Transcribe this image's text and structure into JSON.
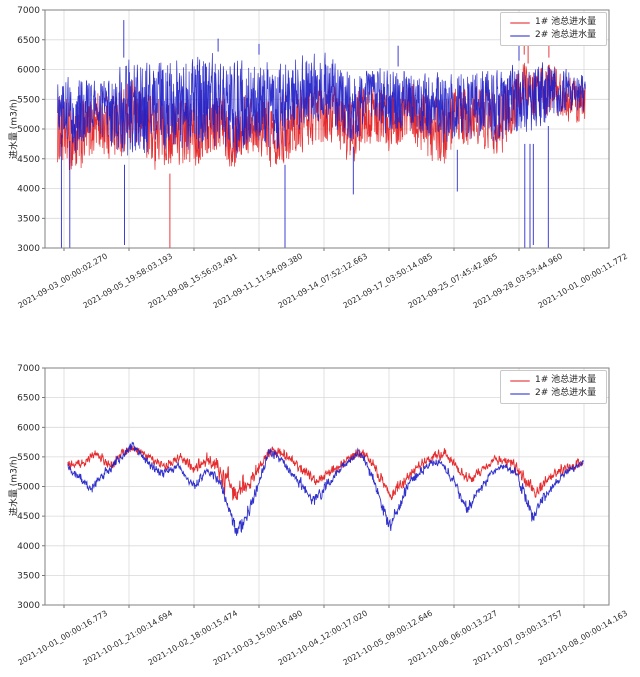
{
  "chart_data": [
    {
      "type": "line",
      "title": "",
      "ylabel": "进水量 (m3/h)",
      "xlabel": "",
      "ylim": [
        3000,
        7000
      ],
      "yticks": [
        3000,
        3500,
        4000,
        4500,
        5000,
        5500,
        6000,
        6500,
        7000
      ],
      "grid": true,
      "legend_position": "upper right",
      "xticklabels": [
        "2021-09-03_00:00:02.270",
        "2021-09-05_19:58:03.193",
        "2021-09-08_15:56:03.491",
        "2021-09-11_11:54:09.380",
        "2021-09-14_07:52:12.663",
        "2021-09-17_03:50:14.085",
        "2021-09-25_07:45:42.865",
        "2021-09-28_03:53:44.960",
        "2021-10-01_00:00:11.772"
      ],
      "series": [
        {
          "name": "1# 池总进水量",
          "color": "#e31a1c",
          "style": "dense-band",
          "band_keypoints": [
            [
              -0.1,
              4350,
              5600
            ],
            [
              0.2,
              4100,
              5500
            ],
            [
              0.5,
              4550,
              5700
            ],
            [
              0.8,
              4400,
              5750
            ],
            [
              1.1,
              4650,
              5850
            ],
            [
              1.4,
              4250,
              5650
            ],
            [
              1.7,
              4350,
              5600
            ],
            [
              2.0,
              4250,
              5650
            ],
            [
              2.3,
              4500,
              5800
            ],
            [
              2.6,
              4300,
              5550
            ],
            [
              2.9,
              4600,
              5700
            ],
            [
              3.2,
              4300,
              5600
            ],
            [
              3.5,
              4450,
              5700
            ],
            [
              3.8,
              4650,
              5800
            ],
            [
              4.1,
              4700,
              5850
            ],
            [
              4.4,
              4300,
              5650
            ],
            [
              4.7,
              4700,
              5800
            ],
            [
              5.0,
              4550,
              5750
            ],
            [
              5.3,
              4800,
              5850
            ],
            [
              5.6,
              4350,
              5650
            ],
            [
              5.85,
              4300,
              5600
            ],
            [
              6.1,
              4500,
              5800
            ],
            [
              6.4,
              4650,
              5850
            ],
            [
              6.7,
              4450,
              5700
            ],
            [
              6.95,
              4950,
              6050
            ],
            [
              7.1,
              5250,
              6300
            ],
            [
              7.3,
              4950,
              6000
            ],
            [
              7.5,
              5150,
              6250
            ],
            [
              7.7,
              5100,
              5950
            ],
            [
              8.02,
              5050,
              5800
            ]
          ]
        },
        {
          "name": "2# 池总进水量",
          "color": "#2020c8",
          "style": "dense-band",
          "band_keypoints": [
            [
              -0.1,
              4900,
              5950
            ],
            [
              0.2,
              4500,
              5900
            ],
            [
              0.5,
              4850,
              5900
            ],
            [
              0.8,
              4500,
              6050
            ],
            [
              1.0,
              4400,
              6250
            ],
            [
              1.3,
              4400,
              6200
            ],
            [
              1.6,
              4600,
              6250
            ],
            [
              1.95,
              4450,
              6300
            ],
            [
              2.35,
              4650,
              6350
            ],
            [
              2.7,
              4450,
              6200
            ],
            [
              3.0,
              4650,
              6250
            ],
            [
              3.3,
              4400,
              6150
            ],
            [
              3.6,
              4950,
              6300
            ],
            [
              4.0,
              5050,
              6350
            ],
            [
              4.45,
              4700,
              6000
            ],
            [
              4.7,
              5100,
              6050
            ],
            [
              5.0,
              4850,
              6100
            ],
            [
              5.3,
              5000,
              6000
            ],
            [
              5.6,
              4750,
              5950
            ],
            [
              6.0,
              4650,
              6050
            ],
            [
              6.3,
              4800,
              6100
            ],
            [
              6.6,
              4700,
              6000
            ],
            [
              7.0,
              4800,
              6150
            ],
            [
              7.2,
              4750,
              6050
            ],
            [
              7.45,
              5050,
              6300
            ],
            [
              7.7,
              5250,
              6050
            ],
            [
              8.02,
              5150,
              5950
            ]
          ]
        }
      ],
      "down_spikes": [
        {
          "x": -0.04,
          "from": 4900,
          "to": 3000,
          "series": 1
        },
        {
          "x": 0.09,
          "from": 4800,
          "to": 3000,
          "series": 1
        },
        {
          "x": 0.93,
          "from": 4400,
          "to": 3050,
          "series": 1
        },
        {
          "x": 1.63,
          "from": 4250,
          "to": 3000,
          "series": 0
        },
        {
          "x": 3.4,
          "from": 4400,
          "to": 3000,
          "series": 1
        },
        {
          "x": 4.45,
          "from": 4700,
          "to": 3900,
          "series": 1
        },
        {
          "x": 6.05,
          "from": 4650,
          "to": 3950,
          "series": 1
        },
        {
          "x": 7.09,
          "from": 4750,
          "to": 3000,
          "series": 1
        },
        {
          "x": 7.17,
          "from": 4750,
          "to": 3000,
          "series": 1
        },
        {
          "x": 7.22,
          "from": 4750,
          "to": 3050,
          "series": 1
        },
        {
          "x": 7.45,
          "from": 5050,
          "to": 3000,
          "series": 1
        }
      ],
      "up_spikes": [
        {
          "x": 0.92,
          "from": 6200,
          "to": 6830,
          "series": 1
        },
        {
          "x": 2.37,
          "from": 6300,
          "to": 6520,
          "series": 1
        },
        {
          "x": 3.0,
          "from": 6250,
          "to": 6430,
          "series": 1
        },
        {
          "x": 5.14,
          "from": 6050,
          "to": 6400,
          "series": 1
        },
        {
          "x": 7.0,
          "from": 6150,
          "to": 6400,
          "series": 1
        },
        {
          "x": 7.08,
          "from": 6250,
          "to": 6560,
          "series": 0
        },
        {
          "x": 7.14,
          "from": 6100,
          "to": 6480,
          "series": 0
        },
        {
          "x": 7.46,
          "from": 6200,
          "to": 6420,
          "series": 0
        }
      ]
    },
    {
      "type": "line",
      "title": "",
      "ylabel": "进水量 (m3/h)",
      "xlabel": "",
      "ylim": [
        3000,
        7000
      ],
      "yticks": [
        3000,
        3500,
        4000,
        4500,
        5000,
        5500,
        6000,
        6500,
        7000
      ],
      "grid": true,
      "legend_position": "upper right",
      "xticklabels": [
        "2021-10-01_00:00:16.773",
        "2021-10-01_21:00:14.694",
        "2021-10-02_18:00:15.474",
        "2021-10-03_15:00:16.490",
        "2021-10-04_12:00:17.020",
        "2021-10-05_09:00:12.646",
        "2021-10-06_06:00:13.227",
        "2021-10-07_03:00:13.757",
        "2021-10-08_00:00:14.163"
      ],
      "series": [
        {
          "name": "1# 池总进水量",
          "color": "#e31a1c",
          "style": "noisy-line",
          "center_keypoints": [
            [
              0.06,
              5350,
              110
            ],
            [
              0.3,
              5400,
              110
            ],
            [
              0.5,
              5550,
              120
            ],
            [
              0.7,
              5350,
              110
            ],
            [
              0.9,
              5550,
              110
            ],
            [
              1.05,
              5650,
              110
            ],
            [
              1.3,
              5500,
              110
            ],
            [
              1.55,
              5350,
              110
            ],
            [
              1.8,
              5500,
              110
            ],
            [
              2.0,
              5300,
              120
            ],
            [
              2.2,
              5450,
              150
            ],
            [
              2.45,
              5150,
              300
            ],
            [
              2.66,
              4950,
              280
            ],
            [
              2.85,
              5050,
              200
            ],
            [
              3.05,
              5400,
              150
            ],
            [
              3.2,
              5650,
              120
            ],
            [
              3.45,
              5500,
              110
            ],
            [
              3.7,
              5250,
              110
            ],
            [
              3.9,
              5100,
              120
            ],
            [
              4.1,
              5250,
              110
            ],
            [
              4.35,
              5450,
              110
            ],
            [
              4.6,
              5600,
              110
            ],
            [
              4.8,
              5300,
              130
            ],
            [
              5.0,
              4900,
              170
            ],
            [
              5.2,
              5050,
              140
            ],
            [
              5.4,
              5300,
              110
            ],
            [
              5.6,
              5450,
              110
            ],
            [
              5.85,
              5550,
              120
            ],
            [
              6.05,
              5300,
              110
            ],
            [
              6.25,
              5100,
              120
            ],
            [
              6.45,
              5300,
              110
            ],
            [
              6.65,
              5450,
              120
            ],
            [
              6.9,
              5400,
              120
            ],
            [
              7.1,
              5100,
              140
            ],
            [
              7.25,
              4900,
              150
            ],
            [
              7.45,
              5150,
              120
            ],
            [
              7.65,
              5300,
              110
            ],
            [
              7.85,
              5350,
              100
            ],
            [
              7.99,
              5400,
              90
            ]
          ]
        },
        {
          "name": "2# 池总进水量",
          "color": "#2020c8",
          "style": "noisy-line",
          "center_keypoints": [
            [
              0.06,
              5300,
              100
            ],
            [
              0.25,
              5150,
              100
            ],
            [
              0.4,
              4950,
              110
            ],
            [
              0.6,
              5200,
              100
            ],
            [
              0.85,
              5450,
              100
            ],
            [
              1.05,
              5700,
              90
            ],
            [
              1.25,
              5450,
              90
            ],
            [
              1.5,
              5200,
              100
            ],
            [
              1.75,
              5350,
              90
            ],
            [
              2.0,
              5000,
              110
            ],
            [
              2.2,
              5250,
              110
            ],
            [
              2.4,
              5050,
              130
            ],
            [
              2.66,
              4250,
              190
            ],
            [
              2.85,
              4600,
              160
            ],
            [
              3.0,
              5050,
              140
            ],
            [
              3.15,
              5600,
              110
            ],
            [
              3.35,
              5450,
              100
            ],
            [
              3.6,
              5100,
              110
            ],
            [
              3.85,
              4750,
              140
            ],
            [
              4.05,
              5050,
              120
            ],
            [
              4.3,
              5350,
              100
            ],
            [
              4.55,
              5600,
              90
            ],
            [
              4.75,
              5150,
              130
            ],
            [
              5.0,
              4350,
              180
            ],
            [
              5.15,
              4650,
              150
            ],
            [
              5.35,
              5150,
              110
            ],
            [
              5.6,
              5350,
              100
            ],
            [
              5.8,
              5400,
              90
            ],
            [
              6.0,
              5100,
              120
            ],
            [
              6.2,
              4600,
              160
            ],
            [
              6.35,
              4900,
              130
            ],
            [
              6.55,
              5200,
              100
            ],
            [
              6.75,
              5350,
              90
            ],
            [
              6.95,
              5250,
              110
            ],
            [
              7.2,
              4500,
              170
            ],
            [
              7.4,
              4850,
              130
            ],
            [
              7.6,
              5100,
              100
            ],
            [
              7.8,
              5300,
              90
            ],
            [
              7.99,
              5400,
              80
            ]
          ]
        }
      ],
      "down_spikes": [],
      "up_spikes": []
    }
  ],
  "colors": {
    "series1_red": "#e31a1c",
    "series2_blue": "#2020c8",
    "gridline": "#d9d9d9",
    "axis_frame": "#808080",
    "tick_text": "#2b2b2b"
  }
}
